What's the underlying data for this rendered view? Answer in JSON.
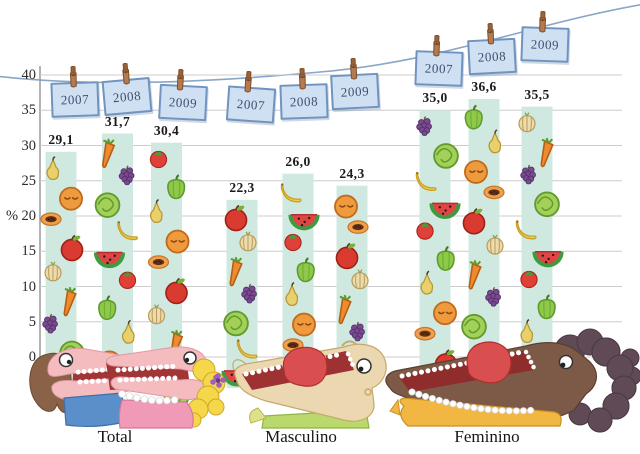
{
  "chart_data": {
    "type": "bar",
    "title": "",
    "ylabel": "%",
    "unit": "%",
    "decimal_separator": ",",
    "ylim": [
      0,
      40
    ],
    "yticks": [
      "40",
      "35",
      "30",
      "25",
      "20",
      "15",
      "10",
      "5",
      "0"
    ],
    "grid": true,
    "legend_position": "year tags hung on clothesline above bars",
    "categories": [
      "2007",
      "2008",
      "2009"
    ],
    "groups": [
      {
        "label": "Total",
        "series": [
          {
            "year": "2007",
            "value": 29.1,
            "label": "29,1"
          },
          {
            "year": "2008",
            "value": 31.7,
            "label": "31,7"
          },
          {
            "year": "2009",
            "value": 30.4,
            "label": "30,4"
          }
        ]
      },
      {
        "label": "Masculino",
        "series": [
          {
            "year": "2007",
            "value": 22.3,
            "label": "22,3"
          },
          {
            "year": "2008",
            "value": 26.0,
            "label": "26,0"
          },
          {
            "year": "2009",
            "value": 24.3,
            "label": "24,3"
          }
        ]
      },
      {
        "label": "Feminino",
        "series": [
          {
            "year": "2007",
            "value": 35.0,
            "label": "35,0"
          },
          {
            "year": "2008",
            "value": 36.6,
            "label": "36,6"
          },
          {
            "year": "2009",
            "value": 35.5,
            "label": "35,5"
          }
        ]
      }
    ]
  },
  "icons": {
    "fruits": [
      "pear-icon",
      "orange-icon",
      "papaya-icon",
      "apple-icon",
      "onion-icon",
      "carrot-icon",
      "grapes-icon",
      "cabbage-icon",
      "banana-icon",
      "watermelon-icon",
      "tomato-icon",
      "pepper-icon"
    ],
    "hanger": "clothespin-icon",
    "tag": "year-tag",
    "illustrations": [
      "total-eaters-illustration",
      "masculino-eater-illustration",
      "feminino-eater-illustration"
    ]
  },
  "colors": {
    "tag_fill": "#cfe0f2",
    "tag_border": "#7094bf",
    "tag_text": "#3e5070",
    "bar_fill": "#cfe9e0",
    "gridline": "#cccccc",
    "axis": "#9a9a9a",
    "rope": "#88a6c6",
    "clothespin": "#b57a50",
    "value_text": "#1b1b1b",
    "label_text": "#161616"
  }
}
